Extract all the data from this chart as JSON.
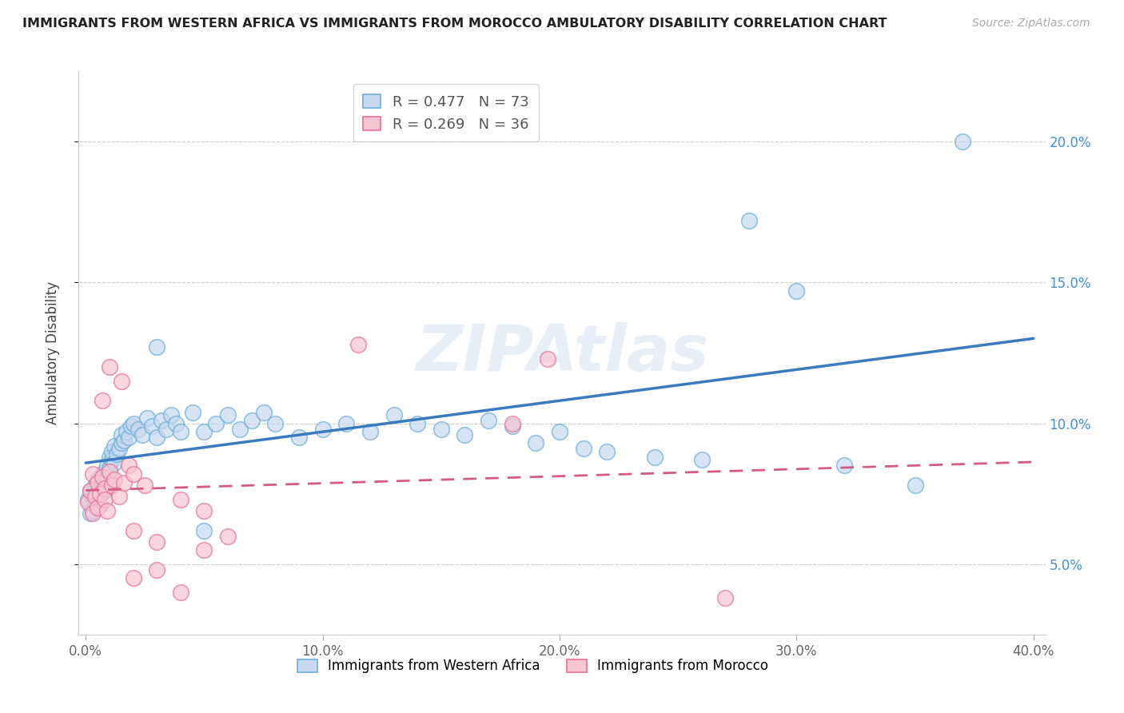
{
  "title": "IMMIGRANTS FROM WESTERN AFRICA VS IMMIGRANTS FROM MOROCCO AMBULATORY DISABILITY CORRELATION CHART",
  "source": "Source: ZipAtlas.com",
  "ylabel": "Ambulatory Disability",
  "xlim": [
    -0.003,
    0.405
  ],
  "ylim": [
    0.025,
    0.225
  ],
  "xtick_labels": [
    "0.0%",
    "10.0%",
    "20.0%",
    "30.0%",
    "40.0%"
  ],
  "xtick_vals": [
    0.0,
    0.1,
    0.2,
    0.3,
    0.4
  ],
  "ytick_labels": [
    "5.0%",
    "10.0%",
    "15.0%",
    "20.0%"
  ],
  "ytick_vals": [
    0.05,
    0.1,
    0.15,
    0.2
  ],
  "blue_fill": "#c6d9f0",
  "blue_edge": "#6baed6",
  "pink_fill": "#f9c6d4",
  "pink_edge": "#e87096",
  "blue_line": "#3a7abf",
  "pink_line": "#d45a80",
  "blue_R": 0.477,
  "blue_N": 73,
  "pink_R": 0.269,
  "pink_N": 36,
  "legend_label_blue": "Immigrants from Western Africa",
  "legend_label_pink": "Immigrants from Morocco",
  "watermark": "ZIPAtlas",
  "blue_x": [
    0.001,
    0.002,
    0.002,
    0.003,
    0.003,
    0.004,
    0.004,
    0.005,
    0.005,
    0.006,
    0.006,
    0.007,
    0.007,
    0.008,
    0.008,
    0.009,
    0.009,
    0.01,
    0.01,
    0.011,
    0.011,
    0.012,
    0.012,
    0.013,
    0.014,
    0.015,
    0.015,
    0.016,
    0.017,
    0.018,
    0.019,
    0.02,
    0.022,
    0.024,
    0.026,
    0.028,
    0.03,
    0.032,
    0.034,
    0.036,
    0.038,
    0.04,
    0.045,
    0.05,
    0.055,
    0.06,
    0.065,
    0.07,
    0.075,
    0.08,
    0.09,
    0.1,
    0.11,
    0.12,
    0.13,
    0.14,
    0.15,
    0.16,
    0.17,
    0.18,
    0.19,
    0.2,
    0.21,
    0.22,
    0.24,
    0.26,
    0.28,
    0.3,
    0.32,
    0.35,
    0.03,
    0.05,
    0.37
  ],
  "blue_y": [
    0.073,
    0.076,
    0.068,
    0.074,
    0.069,
    0.078,
    0.072,
    0.08,
    0.075,
    0.077,
    0.071,
    0.082,
    0.079,
    0.083,
    0.076,
    0.085,
    0.081,
    0.088,
    0.084,
    0.087,
    0.09,
    0.086,
    0.092,
    0.089,
    0.091,
    0.093,
    0.096,
    0.094,
    0.097,
    0.095,
    0.099,
    0.1,
    0.098,
    0.096,
    0.102,
    0.099,
    0.095,
    0.101,
    0.098,
    0.103,
    0.1,
    0.097,
    0.104,
    0.097,
    0.1,
    0.103,
    0.098,
    0.101,
    0.104,
    0.1,
    0.095,
    0.098,
    0.1,
    0.097,
    0.103,
    0.1,
    0.098,
    0.096,
    0.101,
    0.099,
    0.093,
    0.097,
    0.091,
    0.09,
    0.088,
    0.087,
    0.172,
    0.147,
    0.085,
    0.078,
    0.127,
    0.062,
    0.2
  ],
  "pink_x": [
    0.001,
    0.002,
    0.003,
    0.003,
    0.004,
    0.005,
    0.005,
    0.006,
    0.007,
    0.008,
    0.008,
    0.009,
    0.01,
    0.011,
    0.012,
    0.014,
    0.016,
    0.018,
    0.02,
    0.025,
    0.03,
    0.04,
    0.05,
    0.06,
    0.01,
    0.015,
    0.02,
    0.03,
    0.04,
    0.05,
    0.18,
    0.195,
    0.115,
    0.27,
    0.02,
    0.007
  ],
  "pink_y": [
    0.072,
    0.076,
    0.068,
    0.082,
    0.074,
    0.07,
    0.079,
    0.075,
    0.081,
    0.077,
    0.073,
    0.069,
    0.083,
    0.078,
    0.08,
    0.074,
    0.079,
    0.085,
    0.082,
    0.078,
    0.058,
    0.073,
    0.069,
    0.06,
    0.12,
    0.115,
    0.062,
    0.048,
    0.04,
    0.055,
    0.1,
    0.123,
    0.128,
    0.038,
    0.045,
    0.108
  ]
}
